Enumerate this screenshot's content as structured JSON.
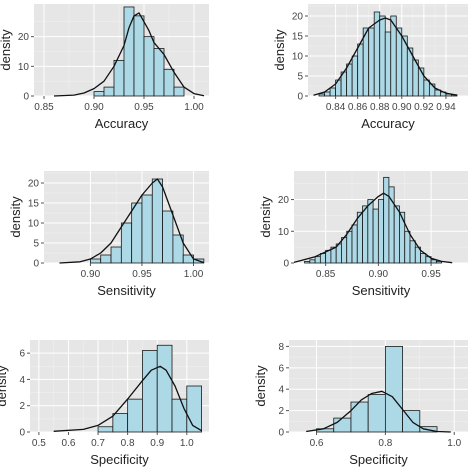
{
  "colors": {
    "panel_bg": "#e6e6e6",
    "grid": "#ffffff",
    "bar_fill": "#add8e6",
    "bar_stroke": "#1a1a1a",
    "density_line": "#111111"
  },
  "chart_data": [
    {
      "type": "histogram",
      "xlabel": "Accuracy",
      "ylabel": "density",
      "xlim": [
        0.84,
        1.015
      ],
      "ylim": [
        0,
        31
      ],
      "xticks": [
        0.85,
        0.9,
        0.95,
        1.0
      ],
      "xtick_labels": [
        "0.85",
        "0.90",
        "0.95",
        "1.00"
      ],
      "yticks": [
        0,
        10,
        20
      ],
      "ytick_labels": [
        "0",
        "10",
        "20"
      ],
      "bins": [
        {
          "x0": 0.9,
          "x1": 0.91,
          "y": 1.5
        },
        {
          "x0": 0.91,
          "x1": 0.92,
          "y": 3
        },
        {
          "x0": 0.92,
          "x1": 0.93,
          "y": 12
        },
        {
          "x0": 0.93,
          "x1": 0.94,
          "y": 30
        },
        {
          "x0": 0.94,
          "x1": 0.95,
          "y": 27
        },
        {
          "x0": 0.95,
          "x1": 0.96,
          "y": 20
        },
        {
          "x0": 0.96,
          "x1": 0.97,
          "y": 16
        },
        {
          "x0": 0.97,
          "x1": 0.98,
          "y": 9
        },
        {
          "x0": 0.98,
          "x1": 0.99,
          "y": 3
        }
      ],
      "density": {
        "x": [
          0.86,
          0.88,
          0.89,
          0.9,
          0.91,
          0.92,
          0.93,
          0.935,
          0.94,
          0.945,
          0.95,
          0.955,
          0.96,
          0.97,
          0.98,
          0.99,
          1.0,
          1.01
        ],
        "y": [
          0,
          0.3,
          1,
          2.5,
          5,
          10,
          17,
          23,
          27,
          28,
          25,
          22,
          18,
          14,
          8,
          3,
          0.8,
          0.1
        ]
      }
    },
    {
      "type": "histogram",
      "xlabel": "Accuracy",
      "ylabel": "density",
      "xlim": [
        0.815,
        0.96
      ],
      "ylim": [
        0,
        23
      ],
      "xticks": [
        0.84,
        0.86,
        0.88,
        0.9,
        0.92,
        0.94
      ],
      "xtick_labels": [
        "0.84",
        "0.86",
        "0.88",
        "0.90",
        "0.92",
        "0.94"
      ],
      "yticks": [
        0,
        5,
        10,
        15,
        20
      ],
      "ytick_labels": [
        "0",
        "5",
        "10",
        "15",
        "20"
      ],
      "bins": [
        {
          "x0": 0.825,
          "x1": 0.83,
          "y": 0.5
        },
        {
          "x0": 0.83,
          "x1": 0.835,
          "y": 1
        },
        {
          "x0": 0.835,
          "x1": 0.84,
          "y": 2
        },
        {
          "x0": 0.84,
          "x1": 0.845,
          "y": 4
        },
        {
          "x0": 0.845,
          "x1": 0.85,
          "y": 6
        },
        {
          "x0": 0.85,
          "x1": 0.855,
          "y": 8
        },
        {
          "x0": 0.855,
          "x1": 0.86,
          "y": 10
        },
        {
          "x0": 0.86,
          "x1": 0.865,
          "y": 13
        },
        {
          "x0": 0.865,
          "x1": 0.87,
          "y": 17
        },
        {
          "x0": 0.87,
          "x1": 0.875,
          "y": 17
        },
        {
          "x0": 0.875,
          "x1": 0.88,
          "y": 21
        },
        {
          "x0": 0.88,
          "x1": 0.885,
          "y": 20
        },
        {
          "x0": 0.885,
          "x1": 0.89,
          "y": 16
        },
        {
          "x0": 0.89,
          "x1": 0.895,
          "y": 20
        },
        {
          "x0": 0.895,
          "x1": 0.9,
          "y": 17
        },
        {
          "x0": 0.9,
          "x1": 0.905,
          "y": 15
        },
        {
          "x0": 0.905,
          "x1": 0.91,
          "y": 12
        },
        {
          "x0": 0.91,
          "x1": 0.915,
          "y": 9
        },
        {
          "x0": 0.915,
          "x1": 0.92,
          "y": 7
        },
        {
          "x0": 0.92,
          "x1": 0.925,
          "y": 4
        },
        {
          "x0": 0.925,
          "x1": 0.93,
          "y": 3
        },
        {
          "x0": 0.93,
          "x1": 0.935,
          "y": 1.5
        },
        {
          "x0": 0.935,
          "x1": 0.94,
          "y": 1
        },
        {
          "x0": 0.94,
          "x1": 0.945,
          "y": 0.5
        },
        {
          "x0": 0.945,
          "x1": 0.95,
          "y": 0.3
        }
      ],
      "density": {
        "x": [
          0.82,
          0.83,
          0.84,
          0.85,
          0.86,
          0.87,
          0.88,
          0.885,
          0.89,
          0.9,
          0.91,
          0.92,
          0.93,
          0.94,
          0.95
        ],
        "y": [
          0.2,
          1,
          3,
          7,
          12,
          17,
          19,
          19.5,
          19,
          15,
          10,
          5,
          2,
          0.7,
          0.2
        ]
      }
    },
    {
      "type": "histogram",
      "xlabel": "Sensitivity",
      "ylabel": "density",
      "xlim": [
        0.855,
        1.015
      ],
      "ylim": [
        0,
        23
      ],
      "xticks": [
        0.9,
        0.95,
        1.0
      ],
      "xtick_labels": [
        "0.90",
        "0.95",
        "1.00"
      ],
      "yticks": [
        0,
        5,
        10,
        15,
        20
      ],
      "ytick_labels": [
        "0",
        "5",
        "10",
        "15",
        "20"
      ],
      "bins": [
        {
          "x0": 0.9,
          "x1": 0.91,
          "y": 1
        },
        {
          "x0": 0.91,
          "x1": 0.92,
          "y": 2
        },
        {
          "x0": 0.92,
          "x1": 0.93,
          "y": 4
        },
        {
          "x0": 0.93,
          "x1": 0.94,
          "y": 10
        },
        {
          "x0": 0.94,
          "x1": 0.95,
          "y": 15
        },
        {
          "x0": 0.95,
          "x1": 0.96,
          "y": 17
        },
        {
          "x0": 0.96,
          "x1": 0.97,
          "y": 21
        },
        {
          "x0": 0.97,
          "x1": 0.98,
          "y": 13
        },
        {
          "x0": 0.98,
          "x1": 0.99,
          "y": 7
        },
        {
          "x0": 0.99,
          "x1": 1.0,
          "y": 2
        },
        {
          "x0": 1.0,
          "x1": 1.01,
          "y": 1
        }
      ],
      "density": {
        "x": [
          0.87,
          0.89,
          0.9,
          0.91,
          0.92,
          0.93,
          0.94,
          0.95,
          0.96,
          0.965,
          0.97,
          0.98,
          0.99,
          1.0,
          1.01
        ],
        "y": [
          0,
          0.3,
          1,
          2.5,
          5,
          9,
          13,
          17,
          20,
          21,
          19,
          12,
          5,
          1,
          0.1
        ]
      }
    },
    {
      "type": "histogram",
      "xlabel": "Sensitivity",
      "ylabel": "density",
      "xlim": [
        0.82,
        0.985
      ],
      "ylim": [
        0,
        29
      ],
      "xticks": [
        0.85,
        0.9,
        0.95
      ],
      "xtick_labels": [
        "0.85",
        "0.90",
        "0.95"
      ],
      "yticks": [
        0,
        10,
        20
      ],
      "ytick_labels": [
        "0",
        "10",
        "20"
      ],
      "bins": [
        {
          "x0": 0.83,
          "x1": 0.835,
          "y": 0.5
        },
        {
          "x0": 0.835,
          "x1": 0.84,
          "y": 1
        },
        {
          "x0": 0.84,
          "x1": 0.845,
          "y": 2
        },
        {
          "x0": 0.845,
          "x1": 0.85,
          "y": 3
        },
        {
          "x0": 0.85,
          "x1": 0.855,
          "y": 4
        },
        {
          "x0": 0.855,
          "x1": 0.86,
          "y": 5
        },
        {
          "x0": 0.86,
          "x1": 0.865,
          "y": 6
        },
        {
          "x0": 0.865,
          "x1": 0.87,
          "y": 8
        },
        {
          "x0": 0.87,
          "x1": 0.875,
          "y": 10
        },
        {
          "x0": 0.875,
          "x1": 0.88,
          "y": 12
        },
        {
          "x0": 0.88,
          "x1": 0.885,
          "y": 16
        },
        {
          "x0": 0.885,
          "x1": 0.89,
          "y": 18
        },
        {
          "x0": 0.89,
          "x1": 0.895,
          "y": 20
        },
        {
          "x0": 0.895,
          "x1": 0.9,
          "y": 17
        },
        {
          "x0": 0.9,
          "x1": 0.905,
          "y": 20
        },
        {
          "x0": 0.905,
          "x1": 0.91,
          "y": 27
        },
        {
          "x0": 0.91,
          "x1": 0.915,
          "y": 24
        },
        {
          "x0": 0.915,
          "x1": 0.92,
          "y": 18
        },
        {
          "x0": 0.92,
          "x1": 0.925,
          "y": 16
        },
        {
          "x0": 0.925,
          "x1": 0.93,
          "y": 10
        },
        {
          "x0": 0.93,
          "x1": 0.935,
          "y": 7
        },
        {
          "x0": 0.935,
          "x1": 0.94,
          "y": 5
        },
        {
          "x0": 0.94,
          "x1": 0.945,
          "y": 3
        },
        {
          "x0": 0.945,
          "x1": 0.95,
          "y": 2
        },
        {
          "x0": 0.95,
          "x1": 0.955,
          "y": 1
        },
        {
          "x0": 0.955,
          "x1": 0.96,
          "y": 0.5
        }
      ],
      "density": {
        "x": [
          0.82,
          0.84,
          0.86,
          0.87,
          0.88,
          0.89,
          0.9,
          0.905,
          0.91,
          0.92,
          0.93,
          0.94,
          0.95,
          0.96,
          0.97
        ],
        "y": [
          0.2,
          2,
          5,
          9,
          14,
          18,
          21,
          22,
          21,
          16,
          9,
          4,
          1.5,
          0.5,
          0.1
        ]
      }
    },
    {
      "type": "histogram",
      "xlabel": "Specificity",
      "ylabel": "density",
      "xlim": [
        0.47,
        1.075
      ],
      "ylim": [
        0,
        7
      ],
      "xticks": [
        0.5,
        0.6,
        0.7,
        0.8,
        0.9,
        1.0
      ],
      "xtick_labels": [
        "0.5",
        "0.6",
        "0.7",
        "0.8",
        "0.9",
        "1.0"
      ],
      "yticks": [
        0,
        2,
        4,
        6
      ],
      "ytick_labels": [
        "0",
        "2",
        "4",
        "6"
      ],
      "bins": [
        {
          "x0": 0.7,
          "x1": 0.75,
          "y": 0.4
        },
        {
          "x0": 0.75,
          "x1": 0.8,
          "y": 1.4
        },
        {
          "x0": 0.8,
          "x1": 0.85,
          "y": 2.5
        },
        {
          "x0": 0.85,
          "x1": 0.9,
          "y": 6.2
        },
        {
          "x0": 0.9,
          "x1": 0.95,
          "y": 6.6
        },
        {
          "x0": 0.95,
          "x1": 1.0,
          "y": 2.5
        },
        {
          "x0": 1.0,
          "x1": 1.05,
          "y": 3.5
        }
      ],
      "density": {
        "x": [
          0.55,
          0.65,
          0.7,
          0.75,
          0.8,
          0.85,
          0.88,
          0.91,
          0.93,
          0.96,
          0.99,
          1.02,
          1.05
        ],
        "y": [
          0.05,
          0.2,
          0.5,
          1.2,
          2.5,
          3.9,
          4.7,
          5.0,
          4.7,
          3.5,
          1.8,
          0.5,
          0.1
        ]
      }
    },
    {
      "type": "histogram",
      "xlabel": "Specificity",
      "ylabel": "density",
      "xlim": [
        0.52,
        1.04
      ],
      "ylim": [
        0,
        8.6
      ],
      "xticks": [
        0.6,
        0.8,
        1.0
      ],
      "xtick_labels": [
        "0.6",
        "0.8",
        "1.0"
      ],
      "yticks": [
        0,
        2,
        4,
        6,
        8
      ],
      "ytick_labels": [
        "0",
        "2",
        "4",
        "6",
        "8"
      ],
      "bins": [
        {
          "x0": 0.6,
          "x1": 0.65,
          "y": 0.3
        },
        {
          "x0": 0.65,
          "x1": 0.7,
          "y": 1.3
        },
        {
          "x0": 0.7,
          "x1": 0.75,
          "y": 2.8
        },
        {
          "x0": 0.75,
          "x1": 0.8,
          "y": 3.5
        },
        {
          "x0": 0.8,
          "x1": 0.85,
          "y": 8.0
        },
        {
          "x0": 0.85,
          "x1": 0.9,
          "y": 2.0
        },
        {
          "x0": 0.9,
          "x1": 0.95,
          "y": 0.5
        }
      ],
      "density": {
        "x": [
          0.57,
          0.62,
          0.66,
          0.7,
          0.73,
          0.76,
          0.79,
          0.82,
          0.85,
          0.88,
          0.91,
          0.95,
          0.99
        ],
        "y": [
          0.05,
          0.3,
          0.9,
          2.0,
          3.0,
          3.6,
          3.8,
          3.3,
          2.1,
          0.9,
          0.3,
          0.05,
          0
        ]
      }
    }
  ]
}
